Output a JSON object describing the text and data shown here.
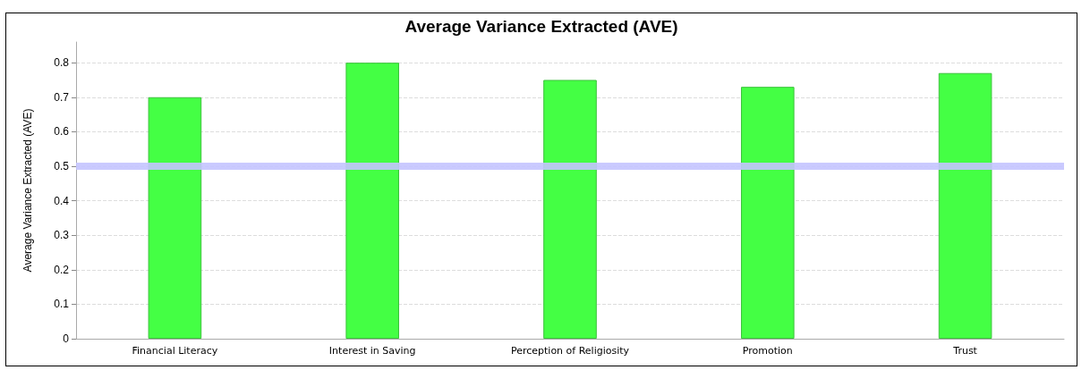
{
  "chart_data": {
    "type": "bar",
    "title": "Average Variance Extracted (AVE)",
    "ylabel": "Average Variance Extracted (AVE)",
    "categories": [
      "Financial Literacy",
      "Interest in Saving",
      "Perception of Religiosity",
      "Promotion",
      "Trust"
    ],
    "values": [
      0.7,
      0.8,
      0.75,
      0.73,
      0.77
    ],
    "color": "#44ff44",
    "ylim": [
      0,
      0.86
    ],
    "yticks": [
      0,
      0.1,
      0.2,
      0.3,
      0.4,
      0.5,
      0.6,
      0.7,
      0.8
    ],
    "grid": "y",
    "ref_lines": [
      {
        "axis": "y",
        "value": 0.5,
        "color": "#c4c4ff"
      }
    ]
  }
}
